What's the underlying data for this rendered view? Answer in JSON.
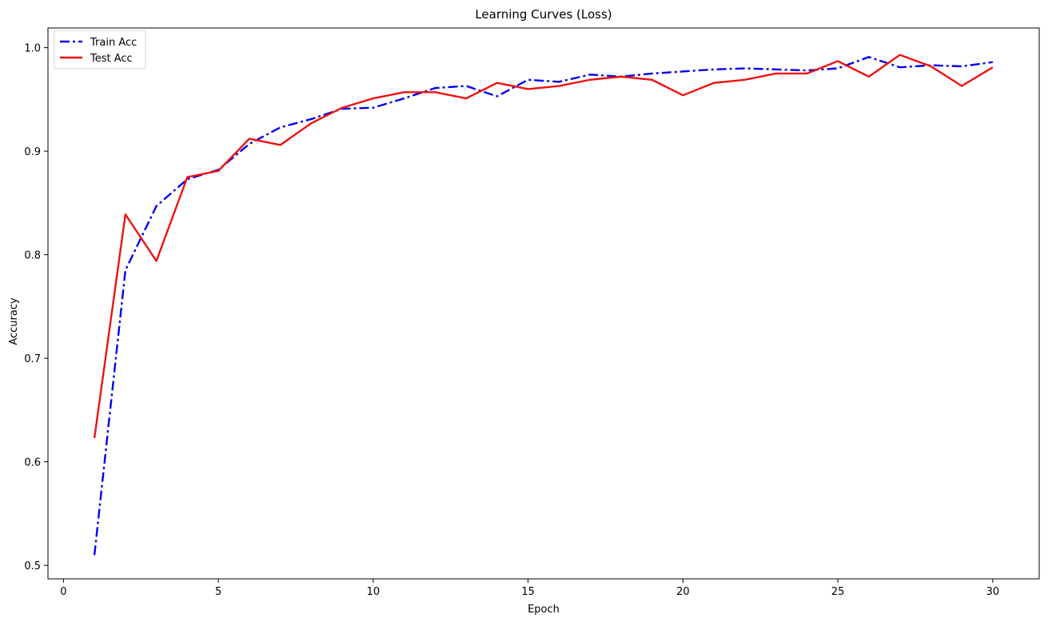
{
  "chart_data": {
    "type": "line",
    "title": "Learning Curves (Loss)",
    "xlabel": "Epoch",
    "ylabel": "Accuracy",
    "xlim": [
      -0.5,
      31.5
    ],
    "ylim": [
      0.487,
      1.019
    ],
    "xticks": [
      0,
      5,
      10,
      15,
      20,
      25,
      30
    ],
    "yticks": [
      0.5,
      0.6,
      0.7,
      0.8,
      0.9,
      1.0
    ],
    "grid": false,
    "legend_position": "top-left",
    "x": [
      1,
      2,
      3,
      4,
      5,
      6,
      7,
      8,
      9,
      10,
      11,
      12,
      13,
      14,
      15,
      16,
      17,
      18,
      19,
      20,
      21,
      22,
      23,
      24,
      25,
      26,
      27,
      28,
      29,
      30
    ],
    "series": [
      {
        "name": "Train Acc",
        "color": "#0000ee",
        "line_style": "dashdot",
        "values": [
          0.51,
          0.785,
          0.847,
          0.873,
          0.882,
          0.907,
          0.923,
          0.931,
          0.941,
          0.942,
          0.951,
          0.961,
          0.963,
          0.953,
          0.969,
          0.967,
          0.974,
          0.972,
          0.975,
          0.977,
          0.979,
          0.98,
          0.979,
          0.978,
          0.98,
          0.991,
          0.981,
          0.983,
          0.982,
          0.986
        ]
      },
      {
        "name": "Test Acc",
        "color": "#ee1111",
        "line_style": "solid",
        "values": [
          0.623,
          0.839,
          0.794,
          0.875,
          0.881,
          0.912,
          0.906,
          0.927,
          0.942,
          0.951,
          0.957,
          0.957,
          0.951,
          0.966,
          0.96,
          0.963,
          0.969,
          0.972,
          0.969,
          0.954,
          0.966,
          0.969,
          0.975,
          0.975,
          0.987,
          0.972,
          0.993,
          0.982,
          0.963,
          0.981
        ]
      }
    ]
  }
}
